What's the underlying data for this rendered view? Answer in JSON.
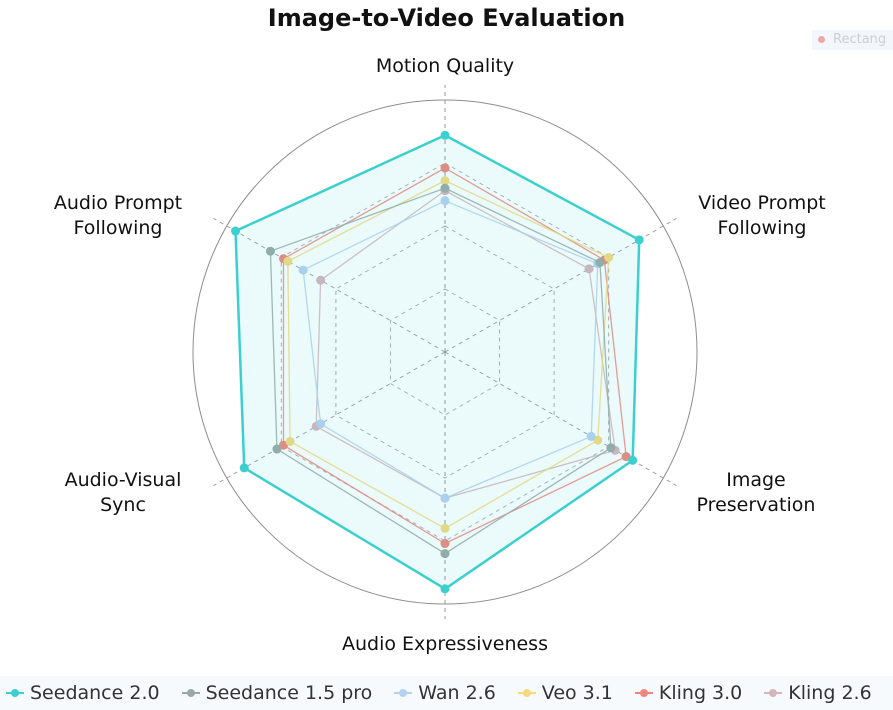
{
  "chart_data": {
    "type": "radar",
    "title": "Image-to-Video Evaluation",
    "axes": [
      "Motion Quality",
      "Video Prompt Following",
      "Image Preservation",
      "Audio Expressiveness",
      "Audio-Visual Sync",
      "Audio Prompt Following"
    ],
    "axis_labels": [
      [
        "Motion Quality"
      ],
      [
        "Video Prompt",
        "Following"
      ],
      [
        "Image",
        "Preservation"
      ],
      [
        "Audio Expressiveness"
      ],
      [
        "Audio-Visual",
        "Sync"
      ],
      [
        "Audio Prompt",
        "Following"
      ]
    ],
    "range": [
      0,
      100
    ],
    "grid": true,
    "legend_position": "bottom",
    "series": [
      {
        "name": "Seedance 2.0",
        "color": "#3ccfcf",
        "values": [
          86,
          89,
          86,
          94,
          92,
          96
        ]
      },
      {
        "name": "Seedance 1.5 pro",
        "color": "#9aa9a8",
        "values": [
          65,
          71,
          76,
          80,
          77,
          80
        ]
      },
      {
        "name": "Wan 2.6",
        "color": "#b6d1f0",
        "values": [
          60,
          70,
          67,
          58,
          57,
          65
        ]
      },
      {
        "name": "Veo 3.1",
        "color": "#f4db7e",
        "values": [
          68,
          75,
          70,
          70,
          71,
          72
        ]
      },
      {
        "name": "Kling 3.0",
        "color": "#f0867b",
        "values": [
          73,
          73,
          83,
          76,
          74,
          74
        ]
      },
      {
        "name": "Kling 2.6",
        "color": "#d6b5bd",
        "values": [
          64,
          66,
          78,
          58,
          59,
          57
        ]
      }
    ]
  },
  "overlay": {
    "ghost_label": "Rectang"
  }
}
